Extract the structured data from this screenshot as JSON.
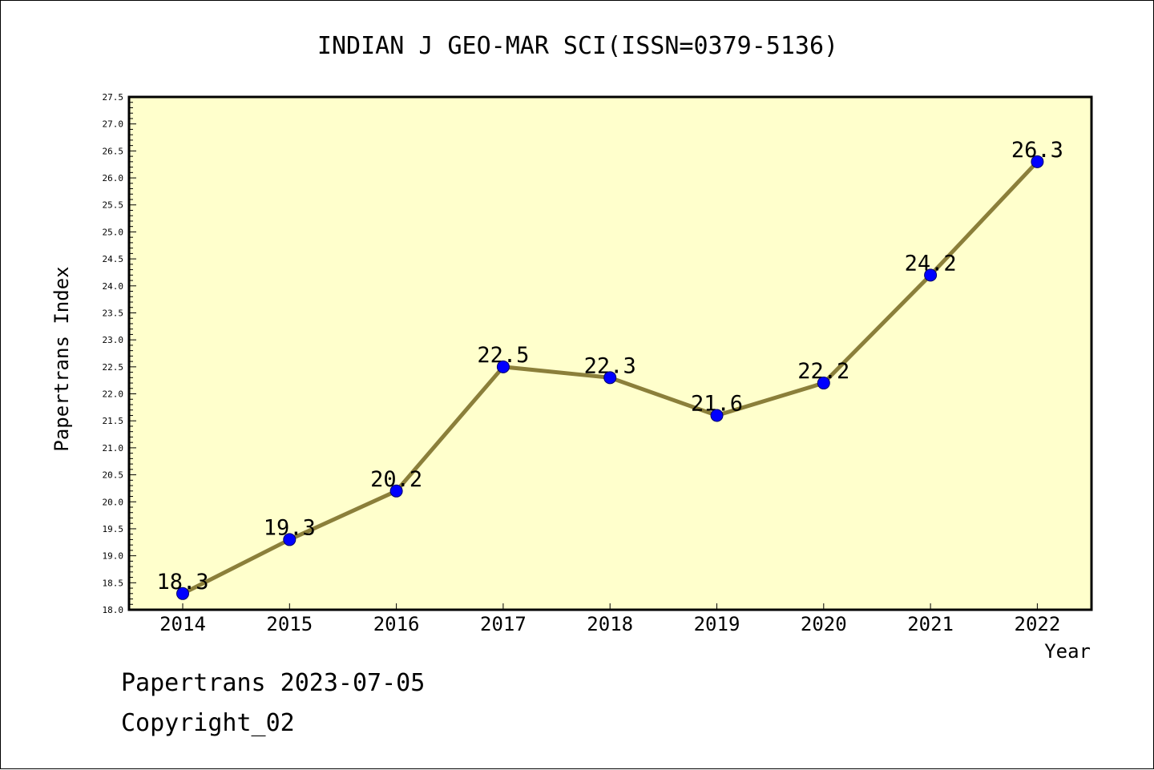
{
  "colors": {
    "plot_background": "#ffffcc",
    "line": "#8b7f3a",
    "marker": "#0000ff",
    "marker_stroke": "#00006b",
    "axis": "#000000"
  },
  "chart_data": {
    "type": "line",
    "title": "INDIAN J GEO-MAR SCI(ISSN=0379-5136)",
    "xlabel": "Year",
    "ylabel": "Papertrans Index",
    "categories": [
      "2014",
      "2015",
      "2016",
      "2017",
      "2018",
      "2019",
      "2020",
      "2021",
      "2022"
    ],
    "series": [
      {
        "values": [
          18.3,
          19.3,
          20.2,
          22.5,
          22.3,
          21.6,
          22.2,
          24.2,
          26.3
        ],
        "labels": [
          "18.3",
          "19.3",
          "20.2",
          "22.5",
          "22.3",
          "21.6",
          "22.2",
          "24.2",
          "26.3"
        ]
      }
    ],
    "ylim": [
      18.0,
      27.5
    ],
    "yticks": [
      "18.0",
      "18.5",
      "19.0",
      "19.5",
      "20.0",
      "20.5",
      "21.0",
      "21.5",
      "22.0",
      "22.5",
      "23.0",
      "23.5",
      "24.0",
      "24.5",
      "25.0",
      "25.5",
      "26.0",
      "26.5",
      "27.0",
      "27.5"
    ],
    "grid": false,
    "legend": "none"
  },
  "footer": {
    "line1": "Papertrans 2023-07-05",
    "line2": "Copyright_02"
  }
}
